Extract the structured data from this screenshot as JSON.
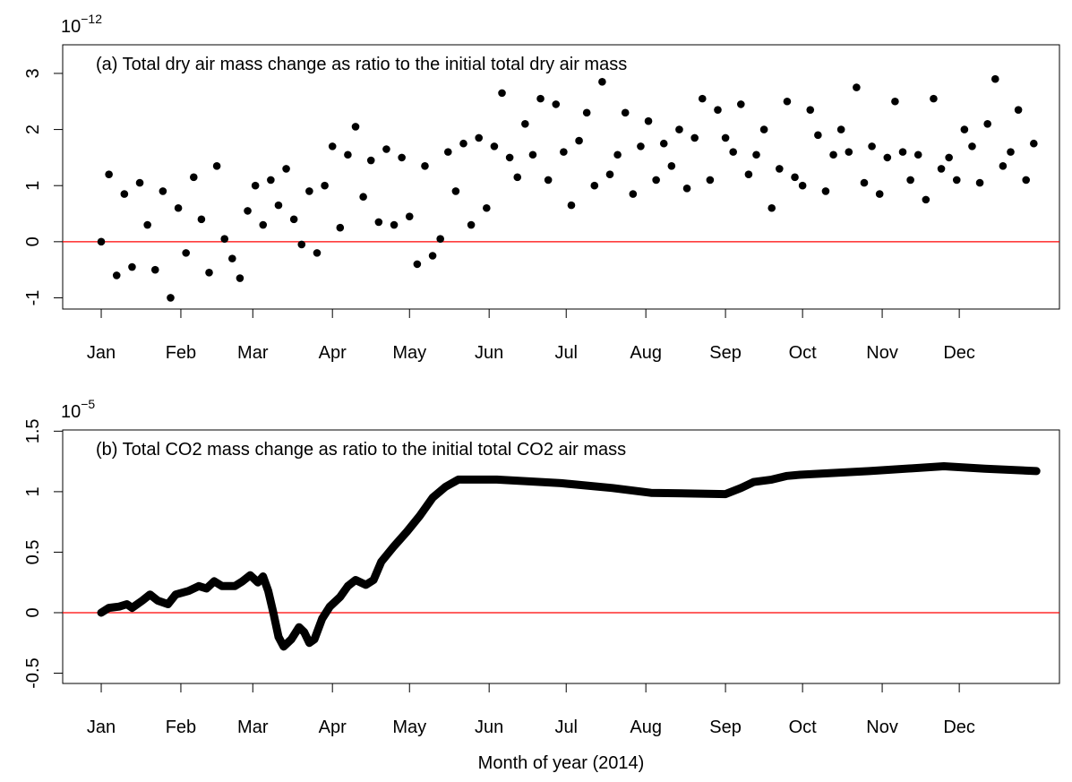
{
  "chart_data": [
    {
      "type": "scatter",
      "title": "(a) Total dry air mass change as ratio to the initial total dry air mass",
      "scale_label": {
        "base": "10",
        "exponent": "−12"
      },
      "color": "#000000",
      "x": [
        1,
        4,
        7,
        10,
        13,
        16,
        19,
        22,
        25,
        28,
        31,
        34,
        37,
        40,
        43,
        46,
        49,
        52,
        55,
        58,
        61,
        64,
        67,
        70,
        73,
        76,
        79,
        82,
        85,
        88,
        91,
        94,
        97,
        100,
        103,
        106,
        109,
        112,
        115,
        118,
        121,
        124,
        127,
        130,
        133,
        136,
        139,
        142,
        145,
        148,
        151,
        154,
        157,
        160,
        163,
        166,
        169,
        172,
        175,
        178,
        181,
        184,
        187,
        190,
        193,
        196,
        199,
        202,
        205,
        208,
        211,
        214,
        217,
        220,
        223,
        226,
        229,
        232,
        235,
        238,
        241,
        244,
        247,
        250,
        253,
        256,
        259,
        262,
        265,
        268,
        271,
        274,
        277,
        280,
        283,
        286,
        289,
        292,
        295,
        298,
        301,
        304,
        307,
        310,
        313,
        316,
        319,
        322,
        325,
        328,
        331,
        334,
        337,
        340,
        343,
        346,
        349,
        352,
        355,
        358,
        361,
        364
      ],
      "values": [
        0.0,
        1.2,
        -0.6,
        0.85,
        -0.45,
        1.05,
        0.3,
        -0.5,
        0.9,
        -1.0,
        0.6,
        -0.2,
        1.15,
        0.4,
        -0.55,
        1.35,
        0.05,
        -0.3,
        -0.65,
        0.55,
        1.0,
        0.3,
        1.1,
        0.65,
        1.3,
        0.4,
        -0.05,
        0.9,
        -0.2,
        1.0,
        1.7,
        0.25,
        1.55,
        2.05,
        0.8,
        1.45,
        0.35,
        1.65,
        0.3,
        1.5,
        0.45,
        -0.4,
        1.35,
        -0.25,
        0.05,
        1.6,
        0.9,
        1.75,
        0.3,
        1.85,
        0.6,
        1.7,
        2.65,
        1.5,
        1.15,
        2.1,
        1.55,
        2.55,
        1.1,
        2.45,
        1.6,
        0.65,
        1.8,
        2.3,
        1.0,
        2.85,
        1.2,
        1.55,
        2.3,
        0.85,
        1.7,
        2.15,
        1.1,
        1.75,
        1.35,
        2.0,
        0.95,
        1.85,
        2.55,
        1.1,
        2.35,
        1.85,
        1.6,
        2.45,
        1.2,
        1.55,
        2.0,
        0.6,
        1.3,
        2.5,
        1.15,
        1.0,
        2.35,
        1.9,
        0.9,
        1.55,
        2.0,
        1.6,
        2.75,
        1.05,
        1.7,
        0.85,
        1.5,
        2.5,
        1.6,
        1.1,
        1.55,
        0.75,
        2.55,
        1.3,
        1.5,
        1.1,
        2.0,
        1.7,
        1.05,
        2.1,
        2.9,
        1.35,
        1.6,
        2.35,
        1.1,
        1.75
      ],
      "xlim": [
        -14,
        374
      ],
      "ylim": [
        -1.2,
        3.51
      ],
      "xticks": [
        {
          "value": 1,
          "label": "Jan"
        },
        {
          "value": 32,
          "label": "Feb"
        },
        {
          "value": 60,
          "label": "Mar"
        },
        {
          "value": 91,
          "label": "Apr"
        },
        {
          "value": 121,
          "label": "May"
        },
        {
          "value": 152,
          "label": "Jun"
        },
        {
          "value": 182,
          "label": "Jul"
        },
        {
          "value": 213,
          "label": "Aug"
        },
        {
          "value": 244,
          "label": "Sep"
        },
        {
          "value": 274,
          "label": "Oct"
        },
        {
          "value": 305,
          "label": "Nov"
        },
        {
          "value": 335,
          "label": "Dec"
        }
      ],
      "yticks": [
        -1,
        0,
        1,
        2,
        3
      ],
      "hline": {
        "value": 0,
        "color": "#ff0000"
      }
    },
    {
      "type": "line",
      "title": "(b) Total CO2 mass change as ratio to the initial total CO2 air mass",
      "scale_label": {
        "base": "10",
        "exponent": "−5"
      },
      "xlabel": "Month of year (2014)",
      "color": "#000000",
      "x": [
        1,
        4,
        8,
        11,
        13,
        17,
        20,
        23,
        27,
        30,
        35,
        39,
        42,
        45,
        48,
        53,
        56,
        59,
        62,
        64,
        66,
        68,
        70,
        72,
        75,
        78,
        80,
        82,
        84,
        87,
        90,
        94,
        97,
        100,
        104,
        107,
        110,
        115,
        120,
        125,
        130,
        135,
        140,
        155,
        180,
        200,
        215,
        244,
        250,
        255,
        262,
        268,
        273,
        300,
        329,
        345,
        365
      ],
      "values": [
        0,
        0.04,
        0.05,
        0.07,
        0.04,
        0.1,
        0.15,
        0.1,
        0.07,
        0.15,
        0.18,
        0.22,
        0.2,
        0.26,
        0.22,
        0.22,
        0.26,
        0.31,
        0.25,
        0.3,
        0.18,
        0.0,
        -0.2,
        -0.28,
        -0.22,
        -0.12,
        -0.16,
        -0.25,
        -0.22,
        -0.05,
        0.05,
        0.13,
        0.22,
        0.27,
        0.23,
        0.27,
        0.42,
        0.55,
        0.67,
        0.8,
        0.95,
        1.04,
        1.1,
        1.1,
        1.07,
        1.03,
        0.99,
        0.98,
        1.03,
        1.08,
        1.1,
        1.13,
        1.14,
        1.17,
        1.21,
        1.19,
        1.17
      ],
      "xlim": [
        -14,
        374
      ],
      "ylim": [
        -0.585,
        1.51
      ],
      "xticks": [
        {
          "value": 1,
          "label": "Jan"
        },
        {
          "value": 32,
          "label": "Feb"
        },
        {
          "value": 60,
          "label": "Mar"
        },
        {
          "value": 91,
          "label": "Apr"
        },
        {
          "value": 121,
          "label": "May"
        },
        {
          "value": 152,
          "label": "Jun"
        },
        {
          "value": 182,
          "label": "Jul"
        },
        {
          "value": 213,
          "label": "Aug"
        },
        {
          "value": 244,
          "label": "Sep"
        },
        {
          "value": 274,
          "label": "Oct"
        },
        {
          "value": 305,
          "label": "Nov"
        },
        {
          "value": 335,
          "label": "Dec"
        }
      ],
      "yticks": [
        -0.5,
        0,
        0.5,
        1,
        1.5
      ],
      "hline": {
        "value": 0,
        "color": "#ff0000"
      }
    }
  ]
}
